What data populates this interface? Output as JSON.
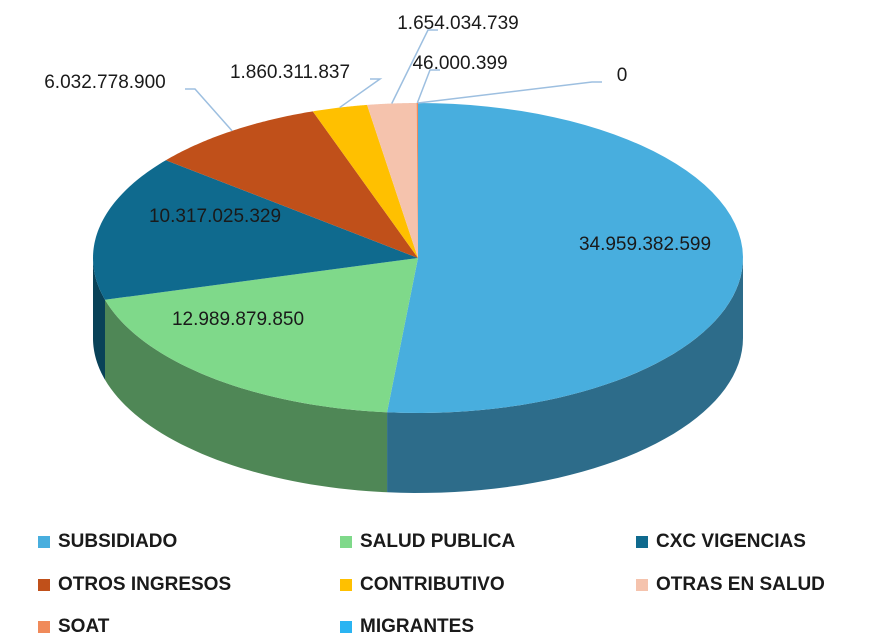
{
  "chart_data": {
    "type": "pie",
    "categories": [
      "SUBSIDIADO",
      "SALUD PUBLICA",
      "CXC VIGENCIAS",
      "OTROS INGRESOS",
      "CONTRIBUTIVO",
      "OTRAS EN SALUD",
      "SOAT",
      "MIGRANTES"
    ],
    "values": [
      34959382599,
      12989879850,
      10317025329,
      6032778900,
      1860311837,
      1654034739,
      46000399,
      0
    ],
    "value_labels": [
      "34.959.382.599",
      "12.989.879.850",
      "10.317.025.329",
      "6.032.778.900",
      "1.860.311.837",
      "1.654.034.739",
      "46.000.399",
      "0"
    ],
    "colors": [
      "#48aede",
      "#7fd98a",
      "#0f6a8e",
      "#c0501a",
      "#ffc000",
      "#f5c3ad",
      "#f08a5a",
      "#2ab4f2"
    ],
    "legend": "bottom"
  }
}
